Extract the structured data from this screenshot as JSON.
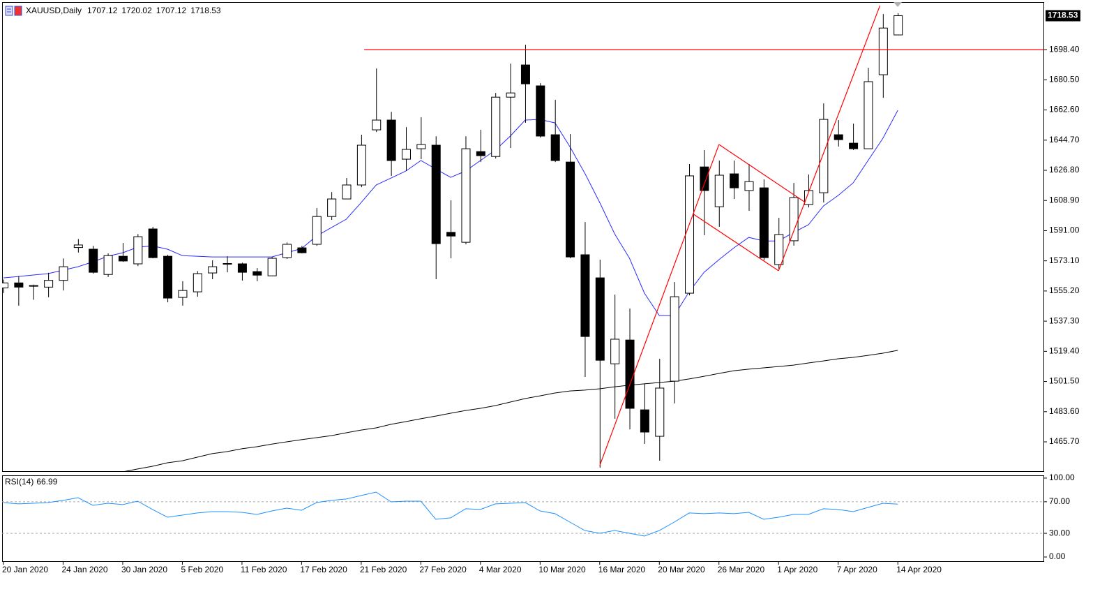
{
  "chart_data": {
    "type": "candlestick",
    "title": "XAUUSD,Daily",
    "categories": [
      "20 Jan 2020",
      null,
      null,
      null,
      "24 Jan 2020",
      null,
      null,
      null,
      "30 Jan 2020",
      null,
      null,
      null,
      "5 Feb 2020",
      null,
      null,
      null,
      "11 Feb 2020",
      null,
      null,
      null,
      "17 Feb 2020",
      null,
      null,
      null,
      "21 Feb 2020",
      null,
      null,
      null,
      "27 Feb 2020",
      null,
      null,
      null,
      "4 Mar 2020",
      null,
      null,
      null,
      "10 Mar 2020",
      null,
      null,
      null,
      "16 Mar 2020",
      null,
      null,
      null,
      "20 Mar 2020",
      null,
      null,
      null,
      "26 Mar 2020",
      null,
      null,
      null,
      "1 Apr 2020",
      null,
      null,
      null,
      "7 Apr 2020",
      null,
      null,
      null,
      "14 Apr 2020"
    ],
    "open": [
      1557,
      1560,
      1558,
      1557.5,
      1561.5,
      1581,
      1580,
      1565,
      1575.8,
      1571.3,
      1592,
      1575.8,
      1551.4,
      1554.7,
      1565.9,
      1571.5,
      1571.3,
      1566.7,
      1564.2,
      1575,
      1580.8,
      1582.9,
      1599.4,
      1609.8,
      1618.1,
      1650.8,
      1656.6,
      1633.4,
      1639.6,
      1641.7,
      1590,
      1584.1,
      1637.9,
      1635,
      1670.2,
      1689.3,
      1676.9,
      1647.9,
      1631.7,
      1576.7,
      1563,
      1512,
      1526.1,
      1484.7,
      1469,
      1501.7,
      1553.9,
      1628.8,
      1605.2,
      1624.7,
      1614.8,
      1616.4,
      1570.9,
      1585,
      1606.5,
      1613.5,
      1647.9,
      1642.9,
      1639.6,
      1683.5,
      1707.12
    ],
    "high": [
      1562,
      1564,
      1559,
      1566,
      1574.5,
      1586,
      1582,
      1577.5,
      1583.7,
      1589,
      1593.3,
      1576.7,
      1561,
      1567,
      1573.4,
      1575.8,
      1572,
      1568.8,
      1575.4,
      1584,
      1582,
      1604.4,
      1613.9,
      1622.2,
      1647.9,
      1687.2,
      1661.5,
      1652.4,
      1658.3,
      1647,
      1609,
      1647,
      1650.8,
      1672.7,
      1690.1,
      1701.3,
      1678.5,
      1668.6,
      1648.3,
      1596.1,
      1573.8,
      1553.1,
      1544.8,
      1500,
      1515,
      1560.5,
      1630.5,
      1638.8,
      1632.6,
      1632.6,
      1630.5,
      1621.4,
      1598.6,
      1619.3,
      1624.3,
      1666.5,
      1656.6,
      1654.5,
      1687.6,
      1719.5,
      1720.02
    ],
    "low": [
      1554,
      1546.5,
      1550,
      1551.5,
      1555.5,
      1578,
      1565.5,
      1563.5,
      1572.5,
      1570,
      1574.6,
      1548.5,
      1546.5,
      1551.8,
      1562.2,
      1566.3,
      1561.4,
      1561,
      1564.2,
      1574.2,
      1577.5,
      1582,
      1597.4,
      1609.8,
      1616.8,
      1649.5,
      1623.5,
      1626.4,
      1633.4,
      1562.2,
      1574.6,
      1582.9,
      1631.7,
      1633.8,
      1640,
      1655,
      1646.2,
      1631.7,
      1574.6,
      1504.2,
      1450.4,
      1479.4,
      1473.1,
      1464.5,
      1454.5,
      1488.5,
      1552.6,
      1588.3,
      1593.3,
      1609.8,
      1602.8,
      1573.4,
      1568.4,
      1582.1,
      1604.8,
      1607.7,
      1640.9,
      1638.8,
      1639.6,
      1669.8,
      1707.12
    ],
    "close": [
      1560,
      1557.5,
      1558.5,
      1561.5,
      1569.6,
      1582.5,
      1566.3,
      1576.2,
      1573,
      1587.4,
      1575,
      1551,
      1555.5,
      1565.5,
      1569.6,
      1571.3,
      1566.3,
      1564.6,
      1574.6,
      1582.9,
      1577.9,
      1599.4,
      1609.8,
      1618.1,
      1641.7,
      1656.6,
      1632.6,
      1639.2,
      1642.1,
      1583.3,
      1587.8,
      1639.6,
      1635.5,
      1670.2,
      1672.7,
      1678.1,
      1647.1,
      1632.6,
      1575.4,
      1528.2,
      1514.1,
      1526.6,
      1485.6,
      1471.5,
      1497.6,
      1551.8,
      1623.5,
      1614.8,
      1623.9,
      1616.4,
      1620.1,
      1575,
      1588.7,
      1610.6,
      1614.8,
      1657,
      1645,
      1639.6,
      1679.4,
      1711.2,
      1718.53
    ],
    "up_color": "#ffffff",
    "down_color": "#000000",
    "ylim": [
      1447.9,
      1726.6
    ],
    "yticks": [
      {
        "value": 1465.7,
        "label": "1465.70"
      },
      {
        "value": 1483.6,
        "label": "1483.60"
      },
      {
        "value": 1501.5,
        "label": "1501.50"
      },
      {
        "value": 1519.4,
        "label": "1519.40"
      },
      {
        "value": 1537.3,
        "label": "1537.30"
      },
      {
        "value": 1555.2,
        "label": "1555.20"
      },
      {
        "value": 1573.1,
        "label": "1573.10"
      },
      {
        "value": 1591,
        "label": "1591.00"
      },
      {
        "value": 1608.9,
        "label": "1608.90"
      },
      {
        "value": 1626.8,
        "label": "1626.80"
      },
      {
        "value": 1644.7,
        "label": "1644.70"
      },
      {
        "value": 1662.6,
        "label": "1662.60"
      },
      {
        "value": 1680.5,
        "label": "1680.50"
      },
      {
        "value": 1698.4,
        "label": "1698.40"
      }
    ],
    "series": [
      {
        "color": "#2b2bff",
        "values": [
          1563.0,
          1563.8,
          1564.7,
          1565.5,
          1567.6,
          1569.6,
          1572.5,
          1575.8,
          1577.9,
          1581.2,
          1582.0,
          1580.0,
          1576.2,
          1575.8,
          1575.4,
          1575.4,
          1575.4,
          1575.4,
          1575.4,
          1577.9,
          1580.4,
          1587.8,
          1592.8,
          1597.8,
          1607.7,
          1618.1,
          1622.2,
          1626.4,
          1632.6,
          1627.6,
          1622.6,
          1626.4,
          1632.6,
          1638.8,
          1647.1,
          1656.6,
          1657.0,
          1654.9,
          1640.8,
          1625.1,
          1607.7,
          1589.1,
          1574.6,
          1553.9,
          1540.6,
          1540.6,
          1554.7,
          1566.3,
          1573.8,
          1580.8,
          1587.0,
          1584.9,
          1584.9,
          1589.9,
          1594.5,
          1605.6,
          1611.9,
          1619.3,
          1632.6,
          1645.8,
          1662.4
        ]
      },
      {
        "color": "#000000",
        "values": [
          null,
          null,
          null,
          null,
          null,
          null,
          null,
          null,
          1447.9,
          1449.6,
          1451.2,
          1453.3,
          1454.5,
          1456.6,
          1458.7,
          1459.9,
          1461.6,
          1462.8,
          1464.4,
          1465.7,
          1467.0,
          1468.2,
          1469.4,
          1471.1,
          1472.7,
          1474.0,
          1476.1,
          1477.7,
          1479.4,
          1481.0,
          1482.7,
          1484.3,
          1485.6,
          1487.2,
          1489.3,
          1491.4,
          1493.0,
          1494.7,
          1495.9,
          1496.4,
          1497.2,
          1498.4,
          1499.3,
          1500.1,
          1500.9,
          1501.7,
          1503.0,
          1504.6,
          1506.3,
          1507.9,
          1508.8,
          1509.6,
          1510.4,
          1511.2,
          1512.5,
          1513.7,
          1515.0,
          1515.8,
          1517.0,
          1518.3,
          1520.0
        ]
      }
    ],
    "drawings": [
      {
        "color": "#ff0000",
        "x": [
          24.2,
          69.8
        ],
        "y": [
          1698.4,
          1698.4
        ]
      },
      {
        "color": "#ff0000",
        "x": [
          40.0,
          48.0
        ],
        "y": [
          1451.6,
          1642.1
        ]
      },
      {
        "color": "#ff0000",
        "x": [
          48.0,
          53.8
        ],
        "y": [
          1642.1,
          1607.7
        ]
      },
      {
        "color": "#ff0000",
        "x": [
          46.3,
          52.0
        ],
        "y": [
          1600.7,
          1567.2
        ]
      },
      {
        "color": "#ff0000",
        "x": [
          52.0,
          58.8
        ],
        "y": [
          1567.2,
          1724.5
        ]
      }
    ],
    "rsi": {
      "label": "RSI(14)",
      "color": "#1e90ff",
      "ylim": [
        -6.2,
        103.5
      ],
      "yticks": [
        {
          "value": 0,
          "label": "0.00"
        },
        {
          "value": 30,
          "label": "30.00"
        },
        {
          "value": 70,
          "label": "70.00"
        },
        {
          "value": 100,
          "label": "100.00"
        }
      ],
      "levels": [
        30,
        70
      ],
      "values": [
        69.0,
        67.3,
        68.1,
        69.0,
        71.7,
        75.2,
        65.5,
        68.1,
        66.4,
        70.8,
        60.2,
        50.4,
        53.1,
        55.8,
        57.5,
        57.5,
        56.6,
        54.0,
        58.4,
        61.9,
        59.3,
        69.0,
        71.7,
        73.5,
        77.9,
        82.3,
        69.9,
        70.8,
        70.8,
        47.8,
        49.6,
        61.1,
        60.2,
        67.3,
        68.1,
        69.0,
        58.4,
        54.9,
        44.2,
        33.6,
        30.1,
        33.6,
        30.1,
        26.5,
        33.6,
        44.2,
        55.8,
        54.9,
        55.8,
        54.9,
        56.6,
        47.8,
        50.4,
        54.0,
        54.0,
        61.1,
        60.2,
        57.5,
        62.8,
        68.1,
        66.99
      ]
    }
  }
}
